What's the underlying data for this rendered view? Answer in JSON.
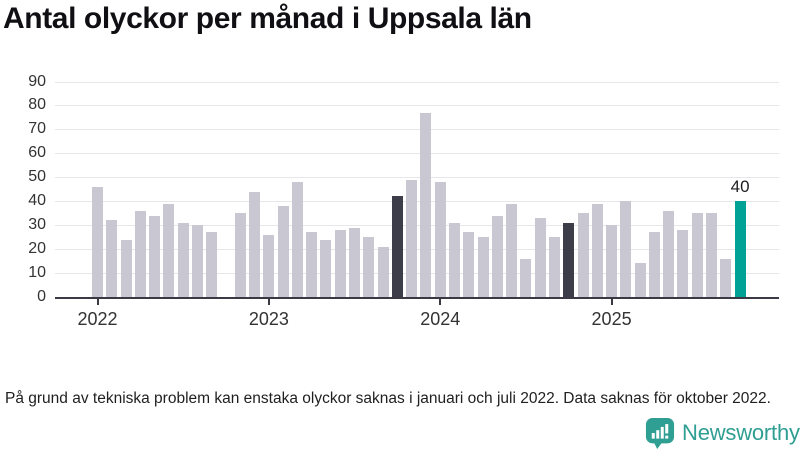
{
  "title": "Antal olyckor per månad i Uppsala län",
  "footnote": "På grund av tekniska problem kan enstaka olyckor saknas i januari och juli 2022. Data saknas för oktober 2022.",
  "branding": {
    "logo_text": "Newsworthy",
    "logo_icon": "bar-chart-speech-bubble-icon"
  },
  "colors": {
    "bar_default": "#c9c7d1",
    "bar_highlight_dark": "#3d3c49",
    "bar_highlight_teal": "#00a296",
    "axis": "#3b3a44",
    "gridline": "#e7e6ea",
    "tick_text": "#333333",
    "brand_teal": "#2f9e93"
  },
  "chart_data": {
    "type": "bar",
    "title": "Antal olyckor per månad i Uppsala län",
    "xlabel": "",
    "ylabel": "",
    "ylim": [
      0,
      90
    ],
    "ytick_step": 10,
    "grid": true,
    "legend": false,
    "x_tick_years": [
      "2022",
      "2023",
      "2024",
      "2025"
    ],
    "highlights": {
      "dark": [
        "2023-10",
        "2024-10"
      ],
      "teal": [
        "2025-10"
      ]
    },
    "data_label": {
      "month": "2025-10",
      "text": "40"
    },
    "missing_months": [
      "2022-10"
    ],
    "points": [
      {
        "month": "2022-01",
        "value": 46
      },
      {
        "month": "2022-02",
        "value": 32
      },
      {
        "month": "2022-03",
        "value": 24
      },
      {
        "month": "2022-04",
        "value": 36
      },
      {
        "month": "2022-05",
        "value": 34
      },
      {
        "month": "2022-06",
        "value": 39
      },
      {
        "month": "2022-07",
        "value": 31
      },
      {
        "month": "2022-08",
        "value": 30
      },
      {
        "month": "2022-09",
        "value": 27
      },
      {
        "month": "2022-10",
        "value": null
      },
      {
        "month": "2022-11",
        "value": 35
      },
      {
        "month": "2022-12",
        "value": 44
      },
      {
        "month": "2023-01",
        "value": 26
      },
      {
        "month": "2023-02",
        "value": 38
      },
      {
        "month": "2023-03",
        "value": 48
      },
      {
        "month": "2023-04",
        "value": 27
      },
      {
        "month": "2023-05",
        "value": 24
      },
      {
        "month": "2023-06",
        "value": 28
      },
      {
        "month": "2023-07",
        "value": 29
      },
      {
        "month": "2023-08",
        "value": 25
      },
      {
        "month": "2023-09",
        "value": 21
      },
      {
        "month": "2023-10",
        "value": 42
      },
      {
        "month": "2023-11",
        "value": 49
      },
      {
        "month": "2023-12",
        "value": 77
      },
      {
        "month": "2024-01",
        "value": 48
      },
      {
        "month": "2024-02",
        "value": 31
      },
      {
        "month": "2024-03",
        "value": 27
      },
      {
        "month": "2024-04",
        "value": 25
      },
      {
        "month": "2024-05",
        "value": 34
      },
      {
        "month": "2024-06",
        "value": 39
      },
      {
        "month": "2024-07",
        "value": 16
      },
      {
        "month": "2024-08",
        "value": 33
      },
      {
        "month": "2024-09",
        "value": 25
      },
      {
        "month": "2024-10",
        "value": 31
      },
      {
        "month": "2024-11",
        "value": 35
      },
      {
        "month": "2024-12",
        "value": 39
      },
      {
        "month": "2025-01",
        "value": 30
      },
      {
        "month": "2025-02",
        "value": 40
      },
      {
        "month": "2025-03",
        "value": 14
      },
      {
        "month": "2025-04",
        "value": 27
      },
      {
        "month": "2025-05",
        "value": 36
      },
      {
        "month": "2025-06",
        "value": 28
      },
      {
        "month": "2025-07",
        "value": 35
      },
      {
        "month": "2025-08",
        "value": 35
      },
      {
        "month": "2025-09",
        "value": 16
      },
      {
        "month": "2025-10",
        "value": 40
      }
    ]
  }
}
